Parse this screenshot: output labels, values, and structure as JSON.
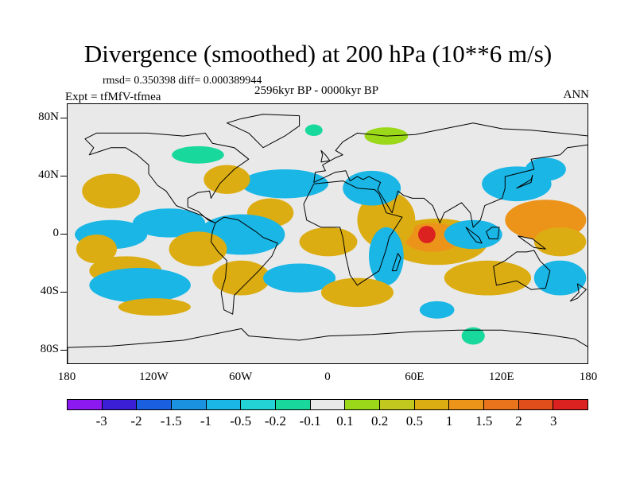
{
  "title": "Divergence (smoothed) at 200 hPa (10**6 m/s)",
  "stats": "rmsd= 0.350398 diff= 0.000389944",
  "experiment": "Expt = tfMfV-tfmea",
  "period": "2596kyr BP - 0000kyr BP",
  "season": "ANN",
  "map": {
    "projection": "cylindrical-equidistant",
    "lon_range": [
      -180,
      180
    ],
    "lat_range": [
      -90,
      90
    ],
    "lat_ticks": [
      "80N",
      "40N",
      "0",
      "40S",
      "80S"
    ],
    "lon_ticks": [
      "180",
      "120W",
      "60W",
      "0",
      "60E",
      "120E",
      "180"
    ]
  },
  "colorbar": {
    "colors": [
      "#8c19f0",
      "#3a1fd6",
      "#1a5fe0",
      "#1b92e0",
      "#19b6e6",
      "#22d2d4",
      "#19d89c",
      "#e8e8e8",
      "#9bd81a",
      "#c2c81d",
      "#dcad13",
      "#ec941a",
      "#e9741b",
      "#e24e1b",
      "#dc2121"
    ],
    "labels": [
      "-3",
      "-2",
      "-1.5",
      "-1",
      "-0.5",
      "-0.2",
      "-0.1",
      "0.1",
      "0.2",
      "0.5",
      "1",
      "1.5",
      "2",
      "3"
    ]
  },
  "fields": [
    {
      "lon": 130,
      "lat": 35,
      "rx": 24,
      "ry": 6,
      "c": "#19b6e6"
    },
    {
      "lon": 150,
      "lat": 45,
      "rx": 14,
      "ry": 4,
      "c": "#19b6e6"
    },
    {
      "lon": 150,
      "lat": 10,
      "rx": 28,
      "ry": 7,
      "c": "#ec941a"
    },
    {
      "lon": 160,
      "lat": -5,
      "rx": 18,
      "ry": 5,
      "c": "#dcad13"
    },
    {
      "lon": 75,
      "lat": -5,
      "rx": 35,
      "ry": 8,
      "c": "#dcad13"
    },
    {
      "lon": 72,
      "lat": -2,
      "rx": 20,
      "ry": 5,
      "c": "#ec941a"
    },
    {
      "lon": 68,
      "lat": 0,
      "rx": 6,
      "ry": 3,
      "c": "#dc2121"
    },
    {
      "lon": 100,
      "lat": 0,
      "rx": 20,
      "ry": 5,
      "c": "#19b6e6"
    },
    {
      "lon": 40,
      "lat": 10,
      "rx": 20,
      "ry": 10,
      "c": "#dcad13"
    },
    {
      "lon": 30,
      "lat": 32,
      "rx": 20,
      "ry": 6,
      "c": "#19b6e6"
    },
    {
      "lon": 40,
      "lat": -15,
      "rx": 12,
      "ry": 10,
      "c": "#19b6e6"
    },
    {
      "lon": 0,
      "lat": -5,
      "rx": 20,
      "ry": 5,
      "c": "#dcad13"
    },
    {
      "lon": -30,
      "lat": 35,
      "rx": 30,
      "ry": 5,
      "c": "#19b6e6"
    },
    {
      "lon": -40,
      "lat": 15,
      "rx": 16,
      "ry": 5,
      "c": "#dcad13"
    },
    {
      "lon": -70,
      "lat": 38,
      "rx": 16,
      "ry": 5,
      "c": "#dcad13"
    },
    {
      "lon": -60,
      "lat": 0,
      "rx": 30,
      "ry": 7,
      "c": "#19b6e6"
    },
    {
      "lon": -110,
      "lat": 8,
      "rx": 25,
      "ry": 5,
      "c": "#19b6e6"
    },
    {
      "lon": -150,
      "lat": 0,
      "rx": 25,
      "ry": 5,
      "c": "#19b6e6"
    },
    {
      "lon": -150,
      "lat": 30,
      "rx": 20,
      "ry": 6,
      "c": "#dcad13"
    },
    {
      "lon": -160,
      "lat": -10,
      "rx": 14,
      "ry": 5,
      "c": "#dcad13"
    },
    {
      "lon": -90,
      "lat": -10,
      "rx": 20,
      "ry": 6,
      "c": "#dcad13"
    },
    {
      "lon": -140,
      "lat": -25,
      "rx": 25,
      "ry": 5,
      "c": "#dcad13"
    },
    {
      "lon": -130,
      "lat": -35,
      "rx": 35,
      "ry": 6,
      "c": "#19b6e6"
    },
    {
      "lon": -60,
      "lat": -30,
      "rx": 20,
      "ry": 6,
      "c": "#dcad13"
    },
    {
      "lon": -20,
      "lat": -30,
      "rx": 25,
      "ry": 5,
      "c": "#19b6e6"
    },
    {
      "lon": 20,
      "lat": -40,
      "rx": 25,
      "ry": 5,
      "c": "#dcad13"
    },
    {
      "lon": 110,
      "lat": -30,
      "rx": 30,
      "ry": 6,
      "c": "#dcad13"
    },
    {
      "lon": 160,
      "lat": -30,
      "rx": 18,
      "ry": 6,
      "c": "#19b6e6"
    },
    {
      "lon": -120,
      "lat": -50,
      "rx": 25,
      "ry": 3,
      "c": "#dcad13"
    },
    {
      "lon": 75,
      "lat": -52,
      "rx": 12,
      "ry": 3,
      "c": "#19b6e6"
    },
    {
      "lon": 100,
      "lat": -70,
      "rx": 8,
      "ry": 3,
      "c": "#19d89c"
    },
    {
      "lon": -90,
      "lat": 55,
      "rx": 18,
      "ry": 3,
      "c": "#19d89c"
    },
    {
      "lon": -10,
      "lat": 72,
      "rx": 6,
      "ry": 2,
      "c": "#19d89c"
    },
    {
      "lon": 40,
      "lat": 68,
      "rx": 15,
      "ry": 3,
      "c": "#9bd81a"
    }
  ],
  "land": [
    {
      "name": "north-america",
      "pts": [
        [
          -168,
          66
        ],
        [
          -160,
          70
        ],
        [
          -140,
          70
        ],
        [
          -125,
          70
        ],
        [
          -100,
          68
        ],
        [
          -85,
          70
        ],
        [
          -80,
          63
        ],
        [
          -65,
          60
        ],
        [
          -55,
          52
        ],
        [
          -65,
          45
        ],
        [
          -75,
          35
        ],
        [
          -81,
          25
        ],
        [
          -82,
          30
        ],
        [
          -90,
          29
        ],
        [
          -97,
          25
        ],
        [
          -97,
          19
        ],
        [
          -90,
          16
        ],
        [
          -83,
          10
        ],
        [
          -78,
          8
        ],
        [
          -80,
          9
        ],
        [
          -87,
          13
        ],
        [
          -95,
          16
        ],
        [
          -105,
          20
        ],
        [
          -112,
          30
        ],
        [
          -118,
          34
        ],
        [
          -124,
          42
        ],
        [
          -124,
          48
        ],
        [
          -132,
          55
        ],
        [
          -140,
          60
        ],
        [
          -150,
          60
        ],
        [
          -165,
          55
        ],
        [
          -162,
          60
        ]
      ]
    },
    {
      "name": "south-america",
      "pts": [
        [
          -78,
          8
        ],
        [
          -72,
          12
        ],
        [
          -62,
          10
        ],
        [
          -50,
          2
        ],
        [
          -45,
          -2
        ],
        [
          -35,
          -6
        ],
        [
          -39,
          -15
        ],
        [
          -48,
          -25
        ],
        [
          -58,
          -35
        ],
        [
          -65,
          -42
        ],
        [
          -66,
          -55
        ],
        [
          -72,
          -52
        ],
        [
          -74,
          -40
        ],
        [
          -71,
          -30
        ],
        [
          -70,
          -18
        ],
        [
          -76,
          -12
        ],
        [
          -81,
          -5
        ],
        [
          -80,
          2
        ]
      ]
    },
    {
      "name": "africa",
      "pts": [
        [
          -17,
          21
        ],
        [
          -10,
          35
        ],
        [
          10,
          37
        ],
        [
          20,
          32
        ],
        [
          32,
          31
        ],
        [
          35,
          28
        ],
        [
          40,
          15
        ],
        [
          51,
          12
        ],
        [
          42,
          -2
        ],
        [
          40,
          -10
        ],
        [
          35,
          -25
        ],
        [
          20,
          -35
        ],
        [
          15,
          -28
        ],
        [
          12,
          -15
        ],
        [
          10,
          -2
        ],
        [
          8,
          5
        ],
        [
          -5,
          5
        ],
        [
          -15,
          10
        ]
      ]
    },
    {
      "name": "eurasia",
      "pts": [
        [
          -10,
          36
        ],
        [
          -9,
          43
        ],
        [
          -2,
          44
        ],
        [
          -4,
          48
        ],
        [
          5,
          53
        ],
        [
          10,
          55
        ],
        [
          5,
          58
        ],
        [
          10,
          64
        ],
        [
          20,
          70
        ],
        [
          40,
          68
        ],
        [
          60,
          69
        ],
        [
          80,
          73
        ],
        [
          100,
          77
        ],
        [
          120,
          73
        ],
        [
          140,
          72
        ],
        [
          160,
          70
        ],
        [
          180,
          68
        ],
        [
          180,
          62
        ],
        [
          165,
          60
        ],
        [
          160,
          55
        ],
        [
          140,
          52
        ],
        [
          142,
          45
        ],
        [
          130,
          42
        ],
        [
          122,
          40
        ],
        [
          122,
          32
        ],
        [
          120,
          25
        ],
        [
          108,
          20
        ],
        [
          105,
          10
        ],
        [
          100,
          5
        ],
        [
          98,
          15
        ],
        [
          92,
          22
        ],
        [
          80,
          15
        ],
        [
          77,
          8
        ],
        [
          72,
          20
        ],
        [
          66,
          25
        ],
        [
          58,
          25
        ],
        [
          52,
          27
        ],
        [
          48,
          30
        ],
        [
          44,
          15
        ],
        [
          36,
          28
        ],
        [
          34,
          31
        ],
        [
          36,
          36
        ],
        [
          28,
          40
        ],
        [
          24,
          38
        ],
        [
          20,
          40
        ],
        [
          15,
          37
        ],
        [
          12,
          44
        ],
        [
          5,
          43
        ]
      ]
    },
    {
      "name": "australia",
      "pts": [
        [
          114,
          -22
        ],
        [
          122,
          -18
        ],
        [
          130,
          -12
        ],
        [
          137,
          -12
        ],
        [
          142,
          -11
        ],
        [
          146,
          -18
        ],
        [
          153,
          -25
        ],
        [
          150,
          -37
        ],
        [
          140,
          -38
        ],
        [
          130,
          -32
        ],
        [
          116,
          -35
        ]
      ]
    },
    {
      "name": "greenland",
      "pts": [
        [
          -45,
          60
        ],
        [
          -30,
          68
        ],
        [
          -20,
          75
        ],
        [
          -20,
          82
        ],
        [
          -45,
          83
        ],
        [
          -60,
          80
        ],
        [
          -70,
          77
        ],
        [
          -55,
          70
        ]
      ]
    },
    {
      "name": "antarctica",
      "pts": [
        [
          -180,
          -78
        ],
        [
          -150,
          -77
        ],
        [
          -100,
          -73
        ],
        [
          -60,
          -65
        ],
        [
          -55,
          -70
        ],
        [
          -20,
          -73
        ],
        [
          0,
          -70
        ],
        [
          30,
          -69
        ],
        [
          60,
          -67
        ],
        [
          90,
          -66
        ],
        [
          120,
          -66
        ],
        [
          150,
          -69
        ],
        [
          170,
          -72
        ],
        [
          180,
          -78
        ],
        [
          180,
          -90
        ],
        [
          -180,
          -90
        ]
      ]
    },
    {
      "name": "madagascar",
      "pts": [
        [
          44,
          -25
        ],
        [
          48,
          -13
        ],
        [
          50,
          -16
        ],
        [
          47,
          -25
        ]
      ]
    },
    {
      "name": "borneo",
      "pts": [
        [
          109,
          2
        ],
        [
          113,
          5
        ],
        [
          118,
          5
        ],
        [
          117,
          -3
        ],
        [
          111,
          -3
        ]
      ]
    },
    {
      "name": "sumatra",
      "pts": [
        [
          95,
          5
        ],
        [
          104,
          -2
        ],
        [
          106,
          -6
        ],
        [
          102,
          -5
        ],
        [
          98,
          0
        ]
      ]
    },
    {
      "name": "new-guinea",
      "pts": [
        [
          131,
          -1
        ],
        [
          141,
          -3
        ],
        [
          150,
          -10
        ],
        [
          142,
          -9
        ],
        [
          135,
          -4
        ]
      ]
    },
    {
      "name": "japan",
      "pts": [
        [
          130,
          32
        ],
        [
          135,
          34
        ],
        [
          140,
          36
        ],
        [
          141,
          41
        ],
        [
          140,
          38
        ],
        [
          135,
          35
        ]
      ]
    },
    {
      "name": "great-britain",
      "pts": [
        [
          -5,
          50
        ],
        [
          1,
          51
        ],
        [
          -2,
          55
        ],
        [
          -5,
          58
        ],
        [
          -4,
          55
        ]
      ]
    },
    {
      "name": "new-zealand",
      "pts": [
        [
          172,
          -34
        ],
        [
          178,
          -38
        ],
        [
          172,
          -44
        ],
        [
          167,
          -46
        ],
        [
          173,
          -40
        ]
      ]
    }
  ]
}
